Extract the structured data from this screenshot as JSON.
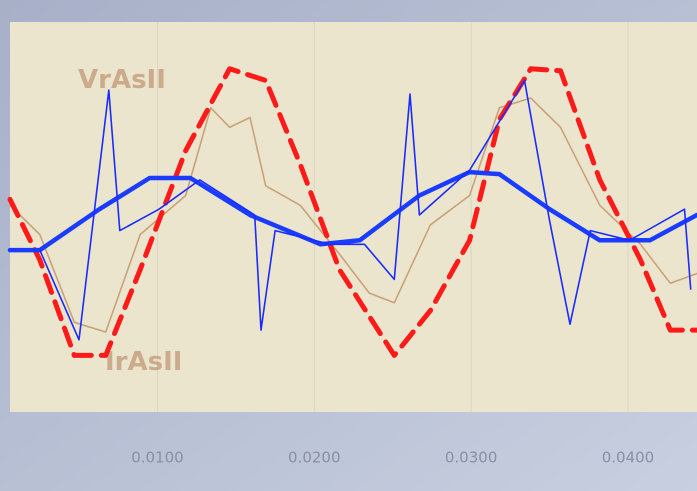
{
  "chart_data": {
    "type": "line",
    "annotations": [
      "VrAsII",
      "IrAsII"
    ],
    "xlim": [
      0.0006,
      0.0444
    ],
    "xticks": [
      {
        "value": 0.01,
        "label": "0.0100"
      },
      {
        "value": 0.02,
        "label": "0.0200"
      },
      {
        "value": 0.03,
        "label": "0.0300"
      },
      {
        "value": 0.04,
        "label": "0.0400"
      }
    ],
    "ylim": [
      -1,
      1
    ],
    "grid": true,
    "series": [
      {
        "color": "#c9a27a",
        "style": "thin",
        "x": [
          0.0006,
          0.0025,
          0.0047,
          0.0067,
          0.0089,
          0.0118,
          0.0134,
          0.0146,
          0.0159,
          0.0169,
          0.0191,
          0.0216,
          0.0235,
          0.0251,
          0.0274,
          0.0299,
          0.0318,
          0.0338,
          0.0357,
          0.0382,
          0.0408,
          0.0427,
          0.0444
        ],
        "values": [
          0.05,
          -0.1,
          -0.55,
          -0.6,
          -0.1,
          0.1,
          0.55,
          0.45,
          0.5,
          0.15,
          0.05,
          -0.2,
          -0.4,
          -0.45,
          -0.05,
          0.1,
          0.55,
          0.6,
          0.45,
          0.05,
          -0.15,
          -0.35,
          -0.3
        ]
      },
      {
        "color": "#ff1a1a",
        "style": "dashed",
        "x": [
          0.0006,
          0.0025,
          0.0047,
          0.0067,
          0.0089,
          0.0118,
          0.0146,
          0.0169,
          0.0191,
          0.0216,
          0.0251,
          0.0274,
          0.0299,
          0.0318,
          0.0338,
          0.0357,
          0.0382,
          0.0408,
          0.0427,
          0.0444
        ],
        "values": [
          0.08,
          -0.23,
          -0.72,
          -0.72,
          -0.28,
          0.33,
          0.75,
          0.69,
          0.26,
          -0.28,
          -0.72,
          -0.49,
          -0.13,
          0.49,
          0.75,
          0.74,
          0.18,
          -0.23,
          -0.59,
          -0.59
        ]
      },
      {
        "color": "#1a3cff",
        "style": "thick",
        "x": [
          0.0006,
          0.0025,
          0.0063,
          0.0095,
          0.0121,
          0.0159,
          0.0204,
          0.0229,
          0.0267,
          0.0299,
          0.0318,
          0.035,
          0.0382,
          0.0414,
          0.0444
        ],
        "values": [
          -0.18,
          -0.18,
          0.03,
          0.19,
          0.19,
          0,
          -0.15,
          -0.13,
          0.1,
          0.22,
          0.21,
          0.03,
          -0.13,
          -0.13,
          0
        ]
      },
      {
        "color": "#1a2cff",
        "style": "thin",
        "x": [
          0.0025,
          0.005,
          0.0069,
          0.0076,
          0.0101,
          0.0127,
          0.0162,
          0.0166,
          0.0175,
          0.021,
          0.0232,
          0.0251,
          0.0261,
          0.0267,
          0.0299,
          0.0334,
          0.035,
          0.0363,
          0.0376,
          0.0401,
          0.0436,
          0.044
        ],
        "values": [
          -0.18,
          -0.64,
          0.64,
          -0.08,
          0.03,
          0.18,
          0,
          -0.59,
          -0.08,
          -0.15,
          -0.15,
          -0.33,
          0.62,
          0,
          0.23,
          0.69,
          -0.03,
          -0.56,
          -0.08,
          -0.13,
          0.03,
          -0.38
        ]
      }
    ]
  }
}
